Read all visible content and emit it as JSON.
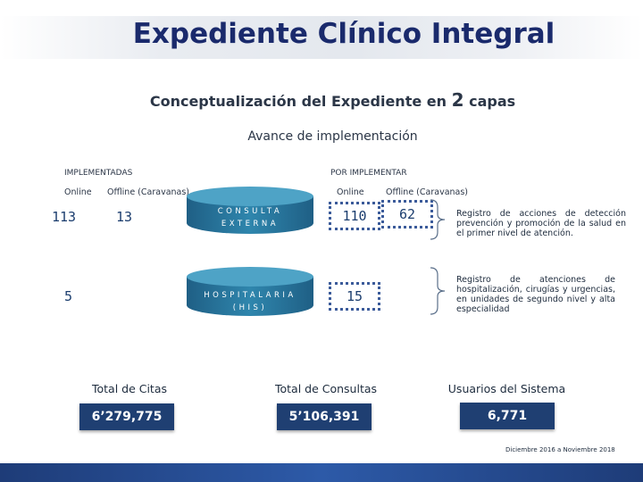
{
  "header": {
    "title": "Expediente Clínico Integral",
    "subtitle_prefix": "Conceptualización del Expediente en",
    "subtitle_number": "2",
    "subtitle_suffix": "capas",
    "progress_title": "Avance de implementación"
  },
  "implemented": {
    "label": "IMPLEMENTADAS",
    "online_label": "Online",
    "offline_label": "Offline (Caravanas)",
    "consulta_online": "113",
    "consulta_offline": "13",
    "hospital_online": "5"
  },
  "pending": {
    "label": "POR IMPLEMENTAR",
    "online_label": "Online",
    "offline_label": "Offline (Caravanas)",
    "consulta_online": "110",
    "consulta_offline": "62",
    "hospital_online": "15"
  },
  "layers": {
    "consulta_line1": "CONSULTA",
    "consulta_line2": "EXTERNA",
    "hospital_line1": "HOSPITALARIA",
    "hospital_line2": "(HIS)"
  },
  "descriptions": {
    "consulta": "Registro de acciones de detección prevención y promoción de la salud en el primer nivel de atención.",
    "hospital": "Registro de atenciones de hospitalización, cirugías y urgencias, en unidades de segundo nivel y alta especialidad"
  },
  "totals": {
    "citas_label": "Total de Citas",
    "citas_value": "6’279,775",
    "consultas_label": "Total de Consultas",
    "consultas_value": "5’106,391",
    "usuarios_label": "Usuarios del Sistema",
    "usuarios_value": "6,771"
  },
  "footer": {
    "period": "Diciembre 2016 a Noviembre 2018"
  },
  "colors": {
    "title": "#1a2a6c",
    "accent_dark": "#1f3f72",
    "cylinder": "#2c7fa6",
    "cylinder_top": "#4ea3c6",
    "box_border": "#3b5b9a"
  }
}
